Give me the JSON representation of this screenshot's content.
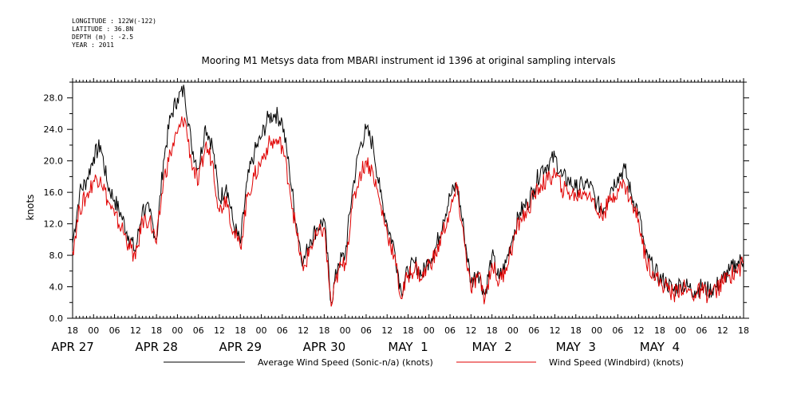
{
  "meta_lines": [
    "LONGITUDE : 122W(-122)",
    "LATITUDE : 36.8N",
    "DEPTH (m) : -2.5",
    "YEAR : 2011"
  ],
  "chart_data": {
    "type": "line",
    "title": "Mooring M1 Metsys data from MBARI instrument id 1396 at original sampling intervals",
    "ylabel": "knots",
    "xlabel": "",
    "ylim": [
      0,
      30
    ],
    "y_ticks": [
      "0.0",
      "4.0",
      "8.0",
      "12.0",
      "16.0",
      "20.0",
      "24.0",
      "28.0"
    ],
    "x_hours_range": [
      -6,
      186
    ],
    "x_tick_labels": [
      "18",
      "00",
      "06",
      "12",
      "18",
      "00",
      "06",
      "12",
      "18",
      "00",
      "06",
      "12",
      "18",
      "00",
      "06",
      "12",
      "18",
      "00",
      "06",
      "12",
      "18",
      "00",
      "06",
      "12",
      "18",
      "00",
      "06",
      "12",
      "18",
      "00",
      "06",
      "12",
      "18"
    ],
    "day_labels": [
      "APR 27",
      "APR 28",
      "APR 29",
      "APR 30",
      "MAY  1",
      "MAY  2",
      "MAY  3",
      "MAY  4"
    ],
    "legend": "bottom",
    "colors": {
      "sonic": "#000000",
      "windbird": "#e00000"
    },
    "series": [
      {
        "name": "Average Wind Speed (Sonic-n/a) (knots)",
        "x": [
          -6,
          -4,
          -2,
          0,
          2,
          4,
          6,
          8,
          10,
          12,
          14,
          16,
          18,
          20,
          22,
          24,
          26,
          28,
          30,
          32,
          34,
          36,
          38,
          40,
          42,
          44,
          46,
          48,
          50,
          52,
          54,
          56,
          58,
          60,
          62,
          64,
          66,
          68,
          70,
          72,
          74,
          76,
          78,
          80,
          82,
          84,
          86,
          88,
          90,
          92,
          94,
          96,
          98,
          100,
          102,
          104,
          106,
          108,
          110,
          112,
          114,
          116,
          118,
          120,
          122,
          124,
          126,
          128,
          130,
          132,
          134,
          136,
          138,
          140,
          142,
          144,
          146,
          148,
          150,
          152,
          154,
          156,
          158,
          160,
          162,
          164,
          166,
          168,
          170,
          172,
          174,
          176,
          178,
          180,
          182,
          184,
          186
        ],
        "y": [
          9.5,
          16.0,
          17.5,
          20.5,
          22.0,
          17.0,
          15.0,
          13.0,
          10.5,
          8.5,
          14.0,
          13.5,
          10.0,
          20.0,
          25.5,
          28.0,
          29.0,
          22.0,
          19.0,
          24.5,
          22.0,
          15.0,
          17.0,
          12.0,
          9.5,
          17.5,
          21.0,
          23.0,
          25.5,
          26.0,
          25.0,
          19.0,
          12.0,
          7.0,
          10.0,
          11.5,
          12.5,
          2.0,
          7.0,
          8.0,
          16.0,
          21.5,
          24.0,
          22.0,
          16.0,
          12.0,
          9.0,
          3.5,
          6.0,
          7.0,
          5.5,
          7.5,
          9.0,
          12.5,
          15.5,
          17.0,
          11.0,
          4.5,
          6.0,
          3.0,
          8.0,
          5.0,
          7.0,
          10.5,
          13.5,
          14.5,
          16.5,
          19.0,
          19.5,
          20.5,
          18.0,
          17.5,
          16.5,
          17.0,
          17.0,
          14.5,
          14.0,
          16.5,
          18.0,
          19.0,
          15.5,
          13.5,
          8.0,
          6.5,
          5.0,
          4.5,
          3.5,
          4.5,
          4.0,
          3.5,
          4.0,
          3.5,
          4.0,
          5.0,
          6.0,
          7.0,
          7.5
        ]
      },
      {
        "name": "Wind Speed (Windbird) (knots)",
        "x": [
          -6,
          -4,
          -2,
          0,
          2,
          4,
          6,
          8,
          10,
          12,
          14,
          16,
          18,
          20,
          22,
          24,
          26,
          28,
          30,
          32,
          34,
          36,
          38,
          40,
          42,
          44,
          46,
          48,
          50,
          52,
          54,
          56,
          58,
          60,
          62,
          64,
          66,
          68,
          70,
          72,
          74,
          76,
          78,
          80,
          82,
          84,
          86,
          88,
          90,
          92,
          94,
          96,
          98,
          100,
          102,
          104,
          106,
          108,
          110,
          112,
          114,
          116,
          118,
          120,
          122,
          124,
          126,
          128,
          130,
          132,
          134,
          136,
          138,
          140,
          142,
          144,
          146,
          148,
          150,
          152,
          154,
          156,
          158,
          160,
          162,
          164,
          166,
          168,
          170,
          172,
          174,
          176,
          178,
          180,
          182,
          184,
          186
        ],
        "y": [
          8.5,
          14.0,
          15.5,
          17.5,
          18.0,
          15.0,
          13.0,
          11.5,
          9.5,
          7.5,
          12.5,
          12.5,
          9.5,
          17.5,
          21.0,
          23.5,
          25.5,
          20.0,
          17.0,
          22.0,
          20.0,
          13.5,
          15.5,
          11.0,
          9.0,
          15.5,
          18.0,
          20.0,
          22.0,
          22.5,
          22.0,
          17.0,
          11.0,
          6.0,
          9.0,
          10.5,
          11.5,
          1.5,
          6.0,
          7.0,
          14.0,
          18.0,
          20.0,
          18.5,
          14.5,
          11.0,
          8.0,
          2.5,
          5.5,
          6.5,
          5.0,
          7.0,
          8.0,
          11.0,
          13.5,
          16.5,
          10.0,
          3.5,
          5.5,
          2.5,
          7.0,
          4.5,
          6.5,
          9.5,
          12.5,
          13.5,
          15.5,
          17.0,
          17.5,
          18.5,
          16.5,
          16.0,
          15.5,
          16.0,
          16.0,
          13.5,
          13.5,
          15.0,
          16.5,
          17.0,
          14.5,
          12.5,
          7.5,
          6.0,
          4.5,
          4.0,
          3.0,
          4.0,
          3.5,
          3.0,
          3.5,
          3.0,
          3.5,
          4.5,
          5.5,
          6.0,
          7.0
        ]
      }
    ]
  }
}
